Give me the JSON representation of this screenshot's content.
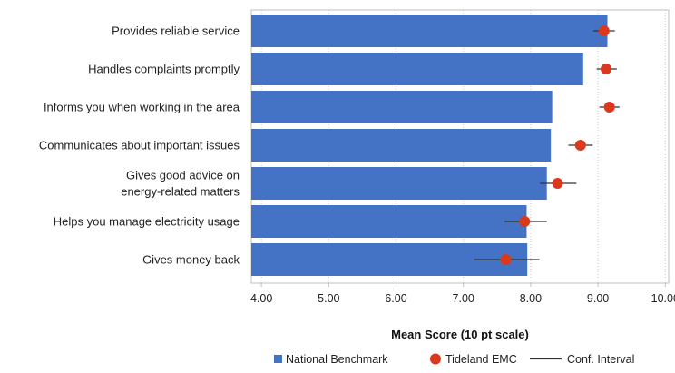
{
  "chart_data": {
    "type": "bar",
    "orientation": "horizontal",
    "categories": [
      [
        "Provides reliable service"
      ],
      [
        "Handles complaints promptly"
      ],
      [
        "Informs you when working in the area"
      ],
      [
        "Communicates about important issues"
      ],
      [
        "Gives good advice on",
        "energy-related matters"
      ],
      [
        "Helps you manage electricity usage"
      ],
      [
        "Gives money back"
      ]
    ],
    "series": [
      {
        "name": "National Benchmark",
        "kind": "bar",
        "color": "#4472C4",
        "values": [
          9.14,
          8.78,
          8.32,
          8.3,
          8.24,
          7.94,
          7.95
        ]
      },
      {
        "name": "Tideland EMC",
        "kind": "point",
        "color": "#D93A1E",
        "values": [
          9.09,
          9.12,
          9.17,
          8.74,
          8.4,
          7.91,
          7.63
        ],
        "ci_low": [
          8.93,
          8.98,
          9.02,
          8.56,
          8.14,
          7.61,
          7.16
        ],
        "ci_high": [
          9.25,
          9.28,
          9.32,
          8.92,
          8.68,
          8.24,
          8.13
        ]
      }
    ],
    "ci_legend": "Conf. Interval",
    "xlabel": "Mean Score (10 pt scale)",
    "xlim": [
      3.85,
      10.05
    ],
    "xticks": [
      4.0,
      5.0,
      6.0,
      7.0,
      8.0,
      9.0,
      10.0
    ],
    "xtick_labels": [
      "4.00",
      "5.00",
      "6.00",
      "7.00",
      "8.00",
      "9.00",
      "10.00"
    ],
    "grid": "vertical dotted",
    "legend_position": "bottom",
    "colors": {
      "bar": "#4472C4",
      "point": "#D93A1E",
      "ci": "#333333"
    }
  }
}
